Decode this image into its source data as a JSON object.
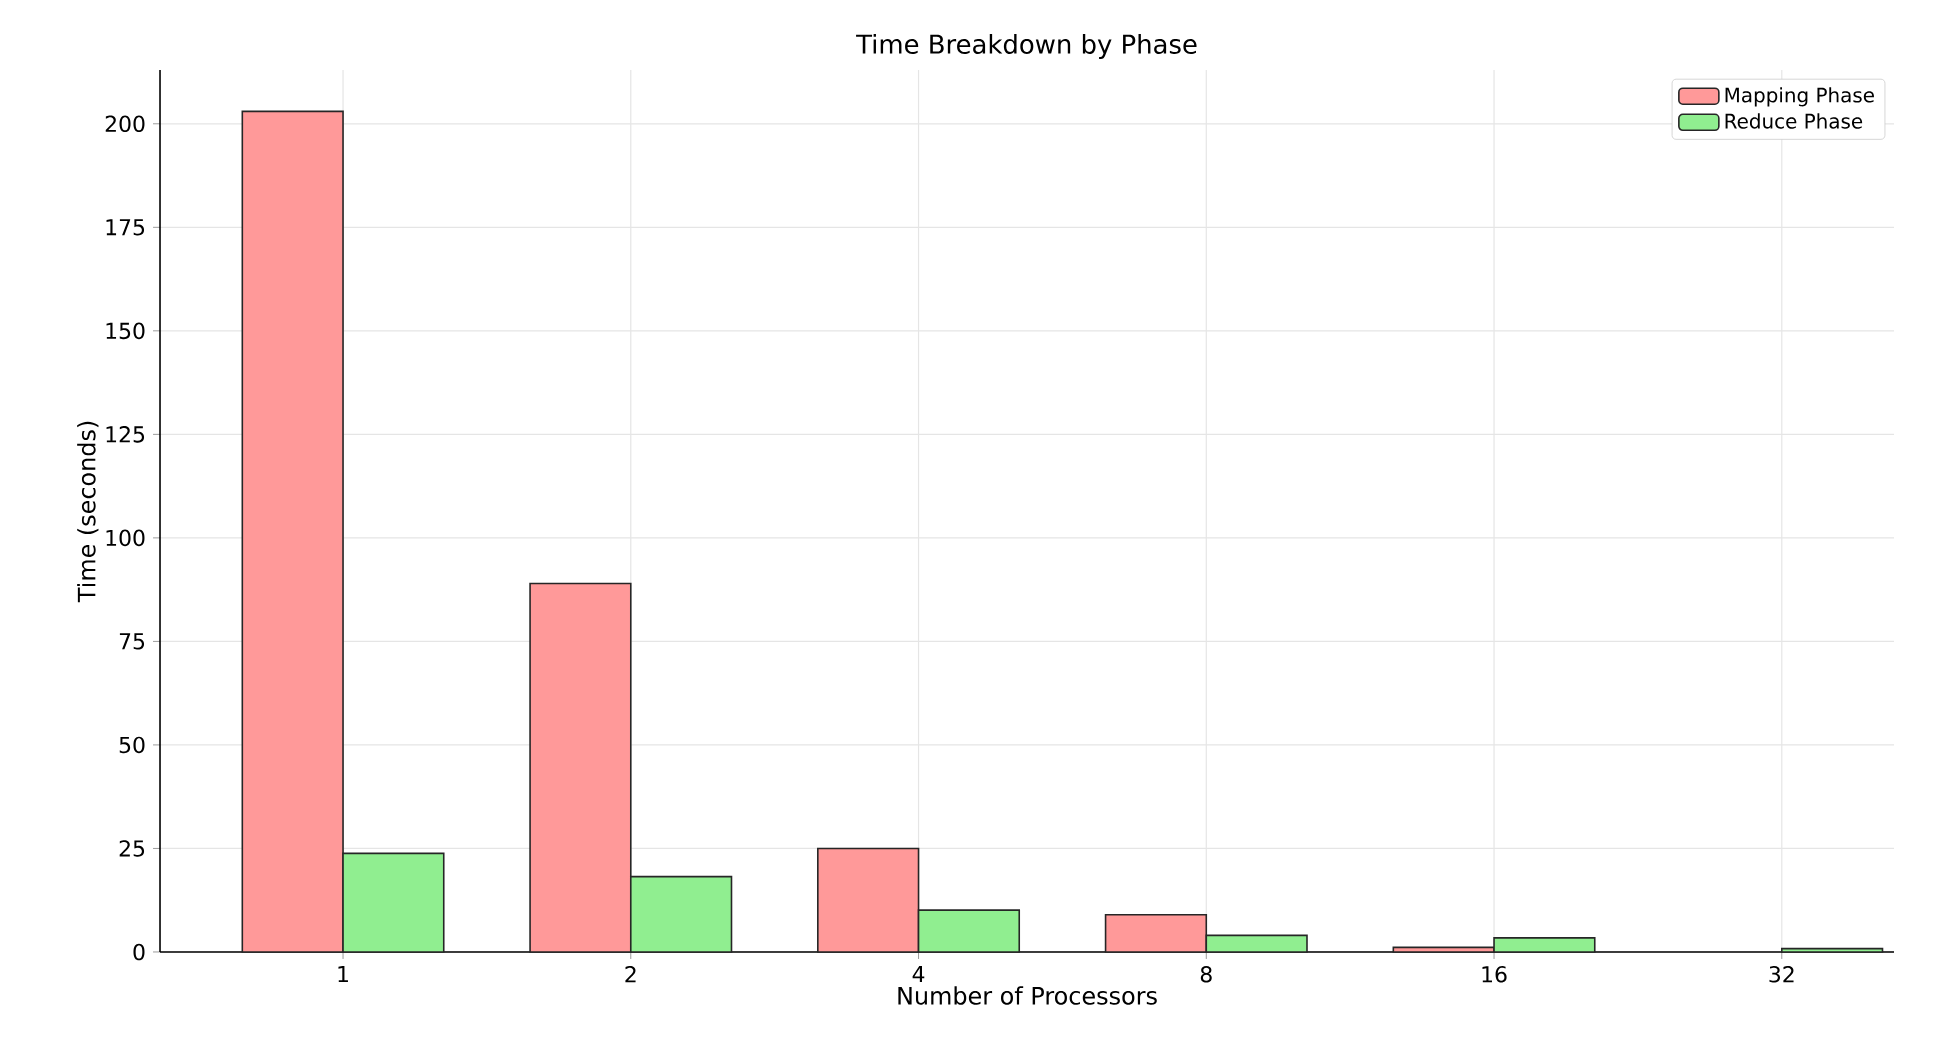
{
  "chart_data": {
    "type": "bar",
    "title": "Time Breakdown by Phase",
    "xlabel": "Number of Processors",
    "ylabel": "Time (seconds)",
    "categories": [
      "1",
      "2",
      "4",
      "8",
      "16",
      "32"
    ],
    "series": [
      {
        "name": "Mapping Phase",
        "color": "#ff9999",
        "values": [
          203,
          89,
          25,
          9,
          1.1,
          null
        ]
      },
      {
        "name": "Reduce Phase",
        "color": "#90ee90",
        "values": [
          23.8,
          18.2,
          10.1,
          4.0,
          3.4,
          0.8
        ]
      }
    ],
    "ylim": [
      0,
      213
    ],
    "yticks": [
      0,
      25,
      50,
      75,
      100,
      125,
      150,
      175,
      200
    ],
    "grid": true,
    "legend": "top right"
  }
}
